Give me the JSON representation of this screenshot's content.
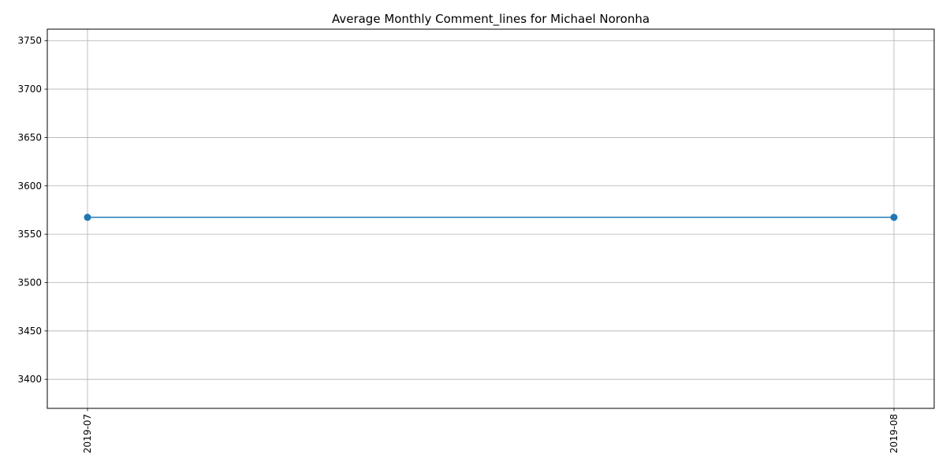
{
  "chart_data": {
    "type": "line",
    "title": "Average Monthly Comment_lines for Michael Noronha",
    "xlabel": "",
    "ylabel": "",
    "categories": [
      "2019-07",
      "2019-08"
    ],
    "series": [
      {
        "values": [
          3567.5,
          3567.5
        ],
        "color": "#1f77b4",
        "marker": "circle"
      }
    ],
    "ylim": [
      3370,
      3762
    ],
    "yticks": [
      3400,
      3450,
      3500,
      3550,
      3600,
      3650,
      3700,
      3750
    ],
    "grid": true,
    "legend": "none"
  }
}
